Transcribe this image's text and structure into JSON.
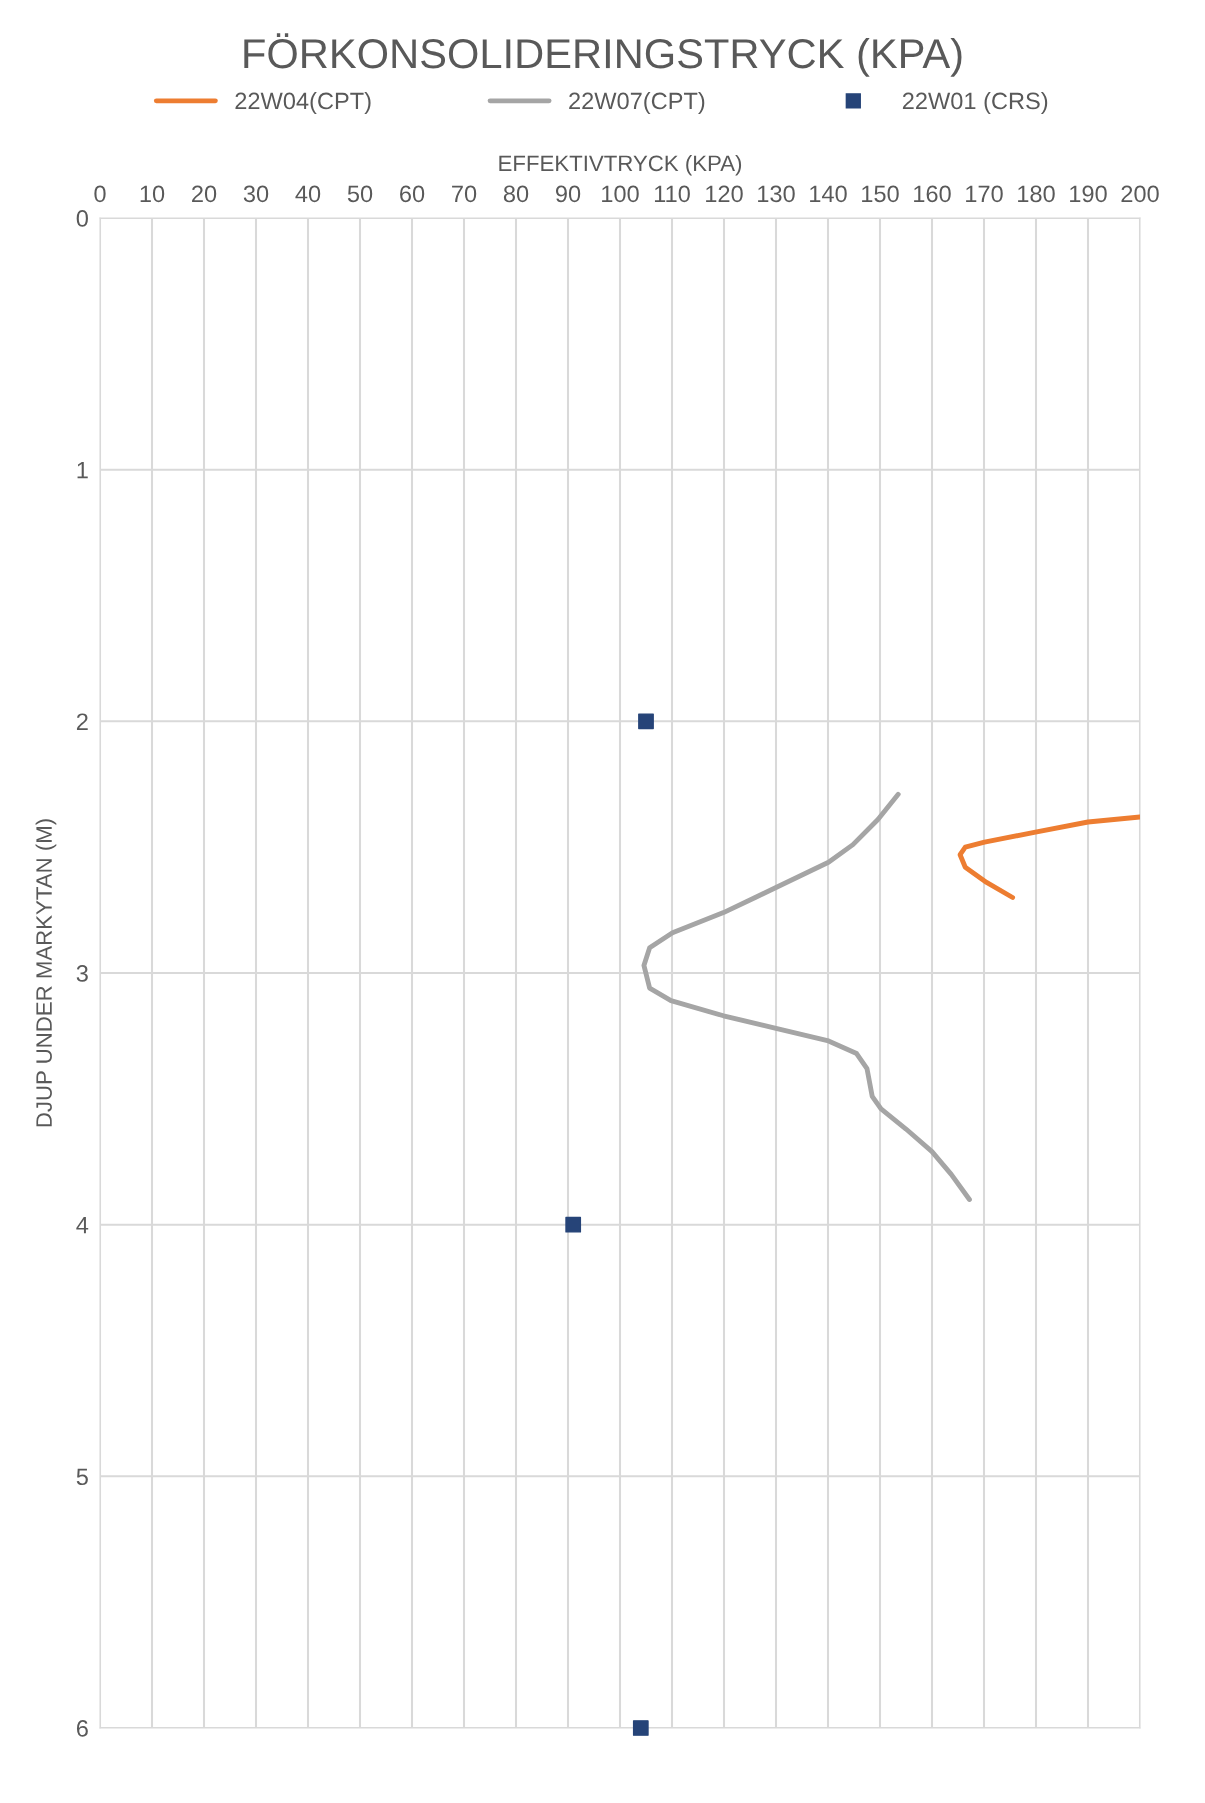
{
  "chart_data": {
    "type": "line",
    "title": "FÖRKONSOLIDERINGSTRYCK (KPA)",
    "xlabel": "EFFEKTIVTRYCK (KPA)",
    "ylabel": "DJUP UNDER MARKYTAN (M)",
    "xlim": [
      0,
      200
    ],
    "xticks": [
      0,
      10,
      20,
      30,
      40,
      50,
      60,
      70,
      80,
      90,
      100,
      110,
      120,
      130,
      140,
      150,
      160,
      170,
      180,
      190,
      200
    ],
    "ylim": [
      6,
      0
    ],
    "yticks": [
      0,
      1,
      2,
      3,
      4,
      5,
      6
    ],
    "grid": true,
    "legend": "top",
    "series": [
      {
        "name": "22W04(CPT)",
        "marker": "none",
        "color": "#ed7d31",
        "x": [
          200,
          190,
          179.9,
          170.1,
          166.4,
          165.4,
          166.4,
          170.5,
          175.5
        ],
        "values": [
          2.38,
          2.4,
          2.44,
          2.48,
          2.5,
          2.53,
          2.58,
          2.64,
          2.7
        ]
      },
      {
        "name": "22W07(CPT)",
        "marker": "none",
        "color": "#a5a5a5",
        "x": [
          153.5,
          149.6,
          144.8,
          140.1,
          130.0,
          126.0,
          119.9,
          110.1,
          105.7,
          104.6,
          105.7,
          109.8,
          119.9,
          130.0,
          140.1,
          145.5,
          147.5,
          148.5,
          150.2,
          155.0,
          160.0,
          163.7,
          167.2
        ],
        "values": [
          2.29,
          2.39,
          2.49,
          2.56,
          2.66,
          2.7,
          2.76,
          2.84,
          2.9,
          2.97,
          3.06,
          3.11,
          3.17,
          3.22,
          3.27,
          3.32,
          3.38,
          3.49,
          3.54,
          3.62,
          3.71,
          3.8,
          3.9
        ]
      },
      {
        "name": "22W01 (CRS)",
        "type": "scatter",
        "marker": "square",
        "color": "#264478",
        "x": [
          105,
          91,
          104
        ],
        "values": [
          2,
          4,
          6
        ]
      }
    ]
  }
}
